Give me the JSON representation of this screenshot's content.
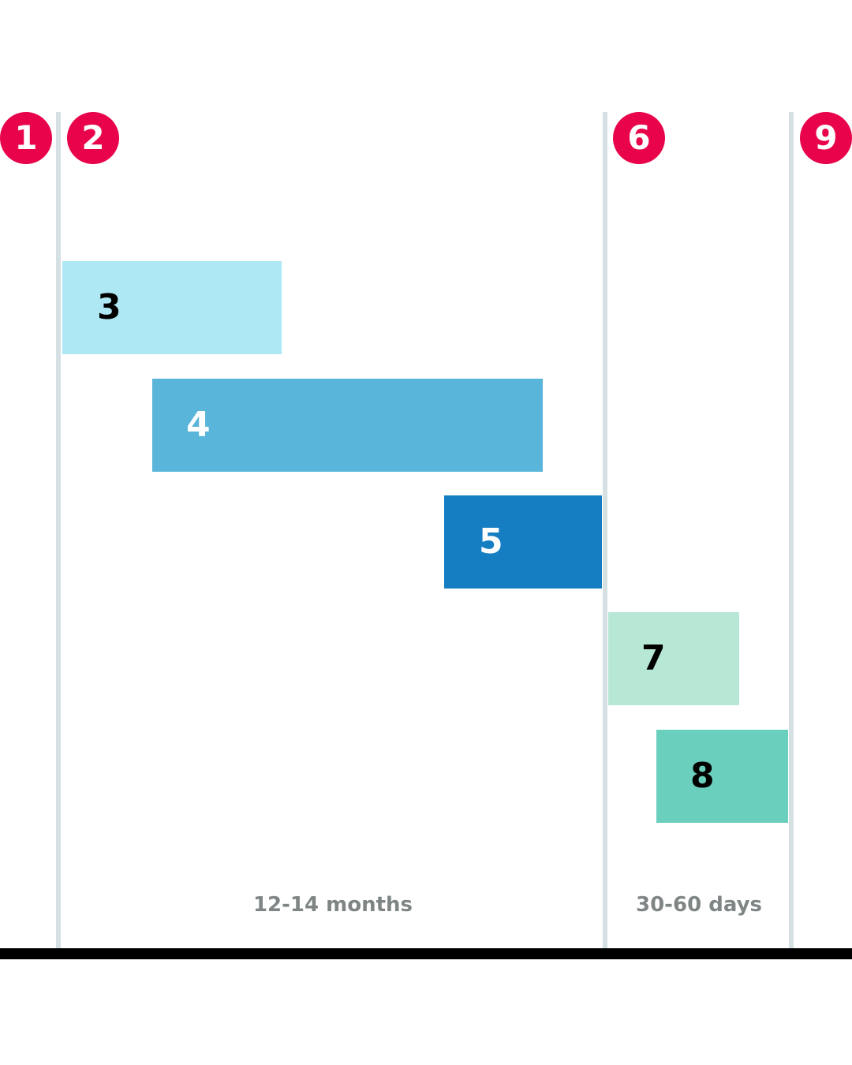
{
  "milestones": [
    {
      "label": "1",
      "color": "#e8034a"
    },
    {
      "label": "2",
      "color": "#e8034a"
    },
    {
      "label": "6",
      "color": "#e8034a"
    },
    {
      "label": "9",
      "color": "#e8034a"
    }
  ],
  "bars": [
    {
      "label": "3",
      "color": "#aee8f5",
      "text_color": "#000000"
    },
    {
      "label": "4",
      "color": "#59b5d9",
      "text_color": "#ffffff"
    },
    {
      "label": "5",
      "color": "#157dc1",
      "text_color": "#ffffff"
    },
    {
      "label": "7",
      "color": "#b7e7d5",
      "text_color": "#000000"
    },
    {
      "label": "8",
      "color": "#6bcfbe",
      "text_color": "#000000"
    }
  ],
  "durations": [
    {
      "label": "12-14 months"
    },
    {
      "label": "30-60 days"
    }
  ]
}
